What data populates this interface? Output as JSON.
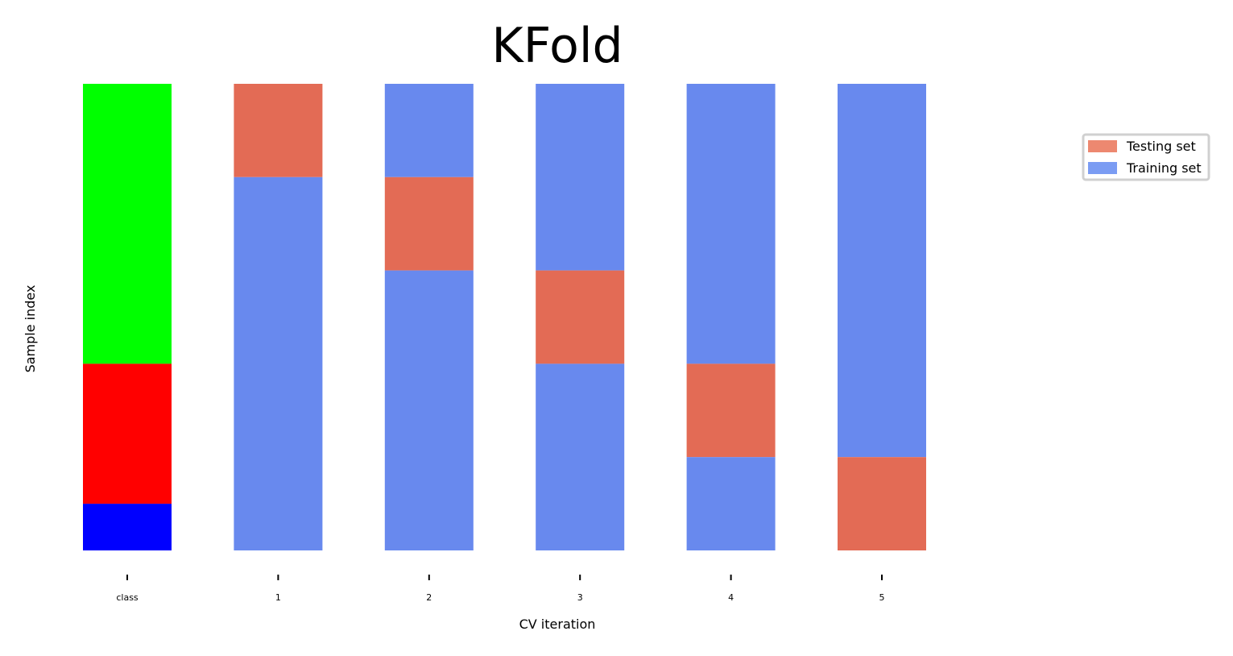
{
  "chart_data": {
    "type": "bar",
    "title": "KFold",
    "xlabel": "CV iteration",
    "ylabel": "Sample index",
    "categories": [
      "class",
      "1",
      "2",
      "3",
      "4",
      "5"
    ],
    "n_samples": 150,
    "ylim": [
      0,
      150
    ],
    "grid": false,
    "legend_position": "top-right",
    "class_segments": [
      {
        "start": 0,
        "end": 90,
        "color": "#00ff00"
      },
      {
        "start": 90,
        "end": 135,
        "color": "#ff0000"
      },
      {
        "start": 135,
        "end": 150,
        "color": "#0000ff"
      }
    ],
    "folds": [
      {
        "label": "1",
        "test": [
          0,
          30
        ]
      },
      {
        "label": "2",
        "test": [
          30,
          60
        ]
      },
      {
        "label": "3",
        "test": [
          60,
          90
        ]
      },
      {
        "label": "4",
        "test": [
          90,
          120
        ]
      },
      {
        "label": "5",
        "test": [
          120,
          150
        ]
      }
    ],
    "colors": {
      "testing": "#e36b55",
      "training": "#6889ee",
      "legend_testing": "#ed8870",
      "legend_training": "#7b9cf3"
    },
    "legend": [
      {
        "label": "Testing set",
        "series": "testing"
      },
      {
        "label": "Training set",
        "series": "training"
      }
    ]
  }
}
